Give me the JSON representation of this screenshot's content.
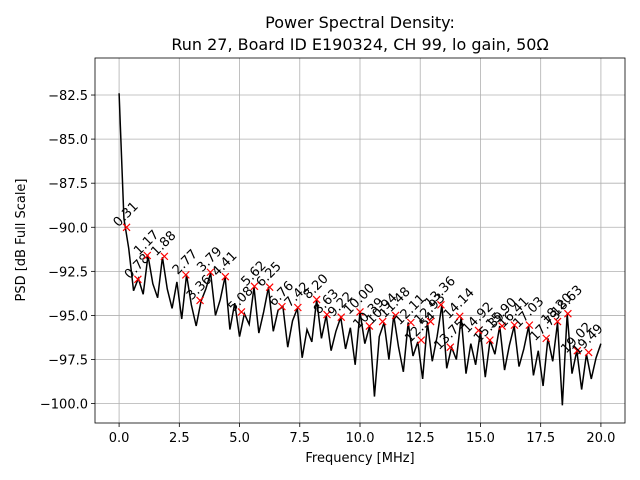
{
  "chart_data": {
    "type": "line",
    "title": [
      "Power Spectral Density:",
      "Run 27, Board ID E190324, CH 99, lo gain, 50Ω"
    ],
    "xlabel": "Frequency [MHz]",
    "ylabel": "PSD [dB Full Scale]",
    "xlim": [
      -1,
      21
    ],
    "ylim": [
      -101.1,
      -80.4
    ],
    "xticks": [
      {
        "value": 0,
        "label": "0.0"
      },
      2.5,
      {
        "value": 5,
        "label": "5.0"
      },
      7.5,
      {
        "value": 10,
        "label": "10.0"
      },
      12.5,
      {
        "value": 15,
        "label": "15.0"
      },
      17.5,
      {
        "value": 20,
        "label": "20.0"
      }
    ],
    "yticks": [
      {
        "value": -82.5,
        "label": "−82.5"
      },
      {
        "value": -85,
        "label": "−85.0"
      },
      {
        "value": -87.5,
        "label": "−87.5"
      },
      {
        "value": -90,
        "label": "−90.0"
      },
      {
        "value": -92.5,
        "label": "−92.5"
      },
      {
        "value": -95,
        "label": "−95.0"
      },
      {
        "value": -97.5,
        "label": "−97.5"
      },
      {
        "value": -100,
        "label": "−100.0"
      }
    ],
    "grid": true,
    "x": [
      0,
      0.2,
      0.4,
      0.6,
      0.8,
      1.0,
      1.2,
      1.4,
      1.6,
      1.8,
      2.0,
      2.2,
      2.4,
      2.6,
      2.8,
      3.0,
      3.2,
      3.4,
      3.6,
      3.8,
      4.0,
      4.2,
      4.4,
      4.6,
      4.8,
      5.0,
      5.2,
      5.4,
      5.6,
      5.8,
      6.0,
      6.2,
      6.4,
      6.6,
      6.8,
      7.0,
      7.2,
      7.4,
      7.6,
      7.8,
      8.0,
      8.2,
      8.4,
      8.6,
      8.8,
      9.0,
      9.2,
      9.4,
      9.6,
      9.8,
      10.0,
      10.2,
      10.4,
      10.6,
      10.8,
      11.0,
      11.2,
      11.4,
      11.6,
      11.8,
      12.0,
      12.2,
      12.4,
      12.6,
      12.8,
      13.0,
      13.2,
      13.4,
      13.6,
      13.8,
      14.0,
      14.2,
      14.4,
      14.6,
      14.8,
      15.0,
      15.2,
      15.4,
      15.6,
      15.8,
      16.0,
      16.2,
      16.4,
      16.6,
      16.8,
      17.0,
      17.2,
      17.4,
      17.6,
      17.8,
      18.0,
      18.2,
      18.4,
      18.6,
      18.8,
      19.0,
      19.2,
      19.4,
      19.6,
      19.8,
      20.0
    ],
    "series": [
      {
        "color": "#000000",
        "values": [
          -82.4,
          -89.5,
          -91.2,
          -93.6,
          -92.9,
          -93.8,
          -91.6,
          -93.2,
          -94.0,
          -91.7,
          -93.5,
          -94.6,
          -93.1,
          -95.2,
          -92.7,
          -94.4,
          -95.6,
          -94.2,
          -93.5,
          -92.6,
          -95.0,
          -94.1,
          -92.8,
          -95.8,
          -94.3,
          -96.2,
          -94.9,
          -95.5,
          -93.4,
          -96.0,
          -94.8,
          -93.4,
          -95.9,
          -94.7,
          -94.5,
          -96.8,
          -95.3,
          -94.6,
          -97.4,
          -95.8,
          -96.5,
          -94.1,
          -96.3,
          -95.0,
          -97.0,
          -95.9,
          -95.1,
          -96.9,
          -95.7,
          -97.8,
          -94.8,
          -96.6,
          -95.6,
          -99.6,
          -96.2,
          -95.4,
          -97.5,
          -95.0,
          -96.8,
          -98.2,
          -95.4,
          -97.3,
          -96.5,
          -98.6,
          -95.4,
          -97.6,
          -96.2,
          -94.4,
          -98.0,
          -96.8,
          -97.5,
          -95.1,
          -98.3,
          -96.6,
          -97.8,
          -95.9,
          -98.5,
          -96.4,
          -97.2,
          -95.6,
          -98.1,
          -96.7,
          -95.6,
          -97.9,
          -96.9,
          -95.6,
          -98.4,
          -97.0,
          -99.0,
          -96.3,
          -97.6,
          -95.4,
          -100.1,
          -94.9,
          -98.3,
          -97.0,
          -99.2,
          -97.2,
          -98.6,
          -97.4,
          -96.6
        ]
      }
    ],
    "peaks": {
      "color": "#ff0000",
      "x": [
        0.31,
        0.78,
        1.17,
        1.88,
        2.77,
        3.36,
        3.79,
        4.41,
        5.08,
        5.62,
        6.25,
        6.76,
        7.42,
        8.2,
        8.63,
        9.22,
        10,
        10.39,
        10.94,
        11.48,
        12.11,
        12.54,
        12.93,
        13.36,
        13.75,
        14.14,
        14.92,
        15.39,
        15.9,
        16.41,
        17.03,
        17.73,
        18.2,
        18.63,
        19.02,
        19.49
      ],
      "y": [
        -90.0,
        -92.95,
        -91.6,
        -91.65,
        -92.7,
        -94.15,
        -92.55,
        -92.8,
        -94.8,
        -93.35,
        -93.4,
        -94.5,
        -94.55,
        -94.1,
        -94.95,
        -95.1,
        -94.8,
        -95.6,
        -95.35,
        -95.0,
        -95.4,
        -96.4,
        -95.35,
        -94.4,
        -96.8,
        -95.05,
        -95.85,
        -96.4,
        -95.6,
        -95.55,
        -95.55,
        -96.3,
        -95.35,
        -94.9,
        -97.0,
        -97.1
      ],
      "value_labels": [
        "0.31",
        "0.78",
        "1.17",
        "1.88",
        "2.77",
        "3.36",
        "3.79",
        "4.41",
        "5.08",
        "5.62",
        "6.25",
        "6.76",
        "7.42",
        "8.20",
        "8.63",
        "9.22",
        "10.00",
        "10.39",
        "10.94",
        "11.48",
        "12.11",
        "12.54",
        "12.93",
        "13.36",
        "13.75",
        "14.14",
        "14.92",
        "15.39",
        "15.90",
        "16.41",
        "17.03",
        "17.73",
        "18.20",
        "18.63",
        "19.02",
        "19.49"
      ]
    }
  }
}
